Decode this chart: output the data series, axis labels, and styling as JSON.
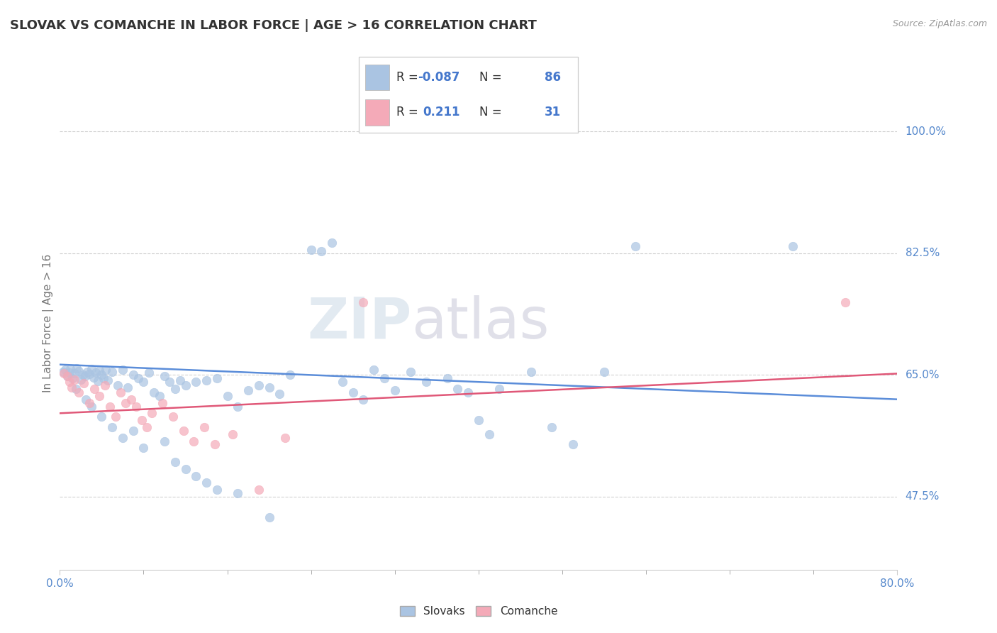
{
  "title": "SLOVAK VS COMANCHE IN LABOR FORCE | AGE > 16 CORRELATION CHART",
  "source": "Source: ZipAtlas.com",
  "xlim": [
    0.0,
    80.0
  ],
  "ylim": [
    37.0,
    108.0
  ],
  "ylabel": "In Labor Force | Age > 16",
  "legend_slovak_label": "Slovaks",
  "legend_comanche_label": "Comanche",
  "r_slovak": -0.087,
  "n_slovak": 86,
  "r_comanche": 0.211,
  "n_comanche": 31,
  "slovak_color": "#aac4e2",
  "comanche_color": "#f4aab8",
  "slovak_line_color": "#5b8dd9",
  "comanche_line_color": "#e05878",
  "background_color": "#ffffff",
  "watermark_text": "ZIPatlas",
  "ytick_vals": [
    47.5,
    65.0,
    82.5,
    100.0
  ],
  "ytick_labels": [
    "47.5%",
    "65.0%",
    "82.5%",
    "100.0%"
  ],
  "xtick_vals": [
    0.0,
    80.0
  ],
  "xtick_labels": [
    "0.0%",
    "80.0%"
  ],
  "sk_line_x0": 0.0,
  "sk_line_y0": 66.5,
  "sk_line_x1": 80.0,
  "sk_line_y1": 61.5,
  "co_line_x0": 0.0,
  "co_line_y0": 59.5,
  "co_line_x1": 80.0,
  "co_line_y1": 65.2,
  "slovak_scatter": [
    [
      0.3,
      65.5
    ],
    [
      0.5,
      65.8
    ],
    [
      0.7,
      64.8
    ],
    [
      0.9,
      65.3
    ],
    [
      1.0,
      65.9
    ],
    [
      1.2,
      64.5
    ],
    [
      1.4,
      65.2
    ],
    [
      1.6,
      66.0
    ],
    [
      1.8,
      65.6
    ],
    [
      2.0,
      64.3
    ],
    [
      2.2,
      65.0
    ],
    [
      2.4,
      64.8
    ],
    [
      2.6,
      65.4
    ],
    [
      2.8,
      65.1
    ],
    [
      3.0,
      65.9
    ],
    [
      3.2,
      64.6
    ],
    [
      3.4,
      65.3
    ],
    [
      3.6,
      64.1
    ],
    [
      3.8,
      65.7
    ],
    [
      4.0,
      65.0
    ],
    [
      4.2,
      64.5
    ],
    [
      4.4,
      65.8
    ],
    [
      4.6,
      64.2
    ],
    [
      5.0,
      65.5
    ],
    [
      5.5,
      63.5
    ],
    [
      6.0,
      65.8
    ],
    [
      6.5,
      63.2
    ],
    [
      7.0,
      65.0
    ],
    [
      7.5,
      64.5
    ],
    [
      8.0,
      64.0
    ],
    [
      8.5,
      65.3
    ],
    [
      9.0,
      62.5
    ],
    [
      9.5,
      62.0
    ],
    [
      10.0,
      64.8
    ],
    [
      10.5,
      64.0
    ],
    [
      11.0,
      63.0
    ],
    [
      11.5,
      64.2
    ],
    [
      12.0,
      63.5
    ],
    [
      13.0,
      64.0
    ],
    [
      14.0,
      64.2
    ],
    [
      15.0,
      64.5
    ],
    [
      16.0,
      62.0
    ],
    [
      17.0,
      60.5
    ],
    [
      18.0,
      62.8
    ],
    [
      19.0,
      63.5
    ],
    [
      20.0,
      63.2
    ],
    [
      21.0,
      62.3
    ],
    [
      22.0,
      65.0
    ],
    [
      24.0,
      83.0
    ],
    [
      25.0,
      82.8
    ],
    [
      26.0,
      84.0
    ],
    [
      27.0,
      64.0
    ],
    [
      28.0,
      62.5
    ],
    [
      29.0,
      61.5
    ],
    [
      30.0,
      65.8
    ],
    [
      31.0,
      64.5
    ],
    [
      32.0,
      62.8
    ],
    [
      33.5,
      65.5
    ],
    [
      35.0,
      64.0
    ],
    [
      37.0,
      64.5
    ],
    [
      38.0,
      63.0
    ],
    [
      39.0,
      62.5
    ],
    [
      40.0,
      58.5
    ],
    [
      41.0,
      56.5
    ],
    [
      42.0,
      63.0
    ],
    [
      45.0,
      65.5
    ],
    [
      47.0,
      57.5
    ],
    [
      49.0,
      55.0
    ],
    [
      52.0,
      65.5
    ],
    [
      55.0,
      83.5
    ],
    [
      70.0,
      83.5
    ],
    [
      1.5,
      63.0
    ],
    [
      2.5,
      61.5
    ],
    [
      3.0,
      60.5
    ],
    [
      4.0,
      59.0
    ],
    [
      5.0,
      57.5
    ],
    [
      6.0,
      56.0
    ],
    [
      7.0,
      57.0
    ],
    [
      8.0,
      54.5
    ],
    [
      10.0,
      55.5
    ],
    [
      11.0,
      52.5
    ],
    [
      12.0,
      51.5
    ],
    [
      13.0,
      50.5
    ],
    [
      14.0,
      49.5
    ],
    [
      15.0,
      48.5
    ],
    [
      17.0,
      48.0
    ],
    [
      20.0,
      44.5
    ]
  ],
  "comanche_scatter": [
    [
      0.4,
      65.2
    ],
    [
      0.7,
      64.8
    ],
    [
      0.9,
      64.0
    ],
    [
      1.1,
      63.2
    ],
    [
      1.4,
      64.3
    ],
    [
      1.8,
      62.5
    ],
    [
      2.3,
      63.8
    ],
    [
      2.8,
      61.0
    ],
    [
      3.3,
      63.0
    ],
    [
      3.8,
      62.0
    ],
    [
      4.3,
      63.5
    ],
    [
      4.8,
      60.5
    ],
    [
      5.3,
      59.0
    ],
    [
      5.8,
      62.5
    ],
    [
      6.3,
      61.0
    ],
    [
      6.8,
      61.5
    ],
    [
      7.3,
      60.5
    ],
    [
      7.8,
      58.5
    ],
    [
      8.3,
      57.5
    ],
    [
      8.8,
      59.5
    ],
    [
      9.8,
      61.0
    ],
    [
      10.8,
      59.0
    ],
    [
      11.8,
      57.0
    ],
    [
      12.8,
      55.5
    ],
    [
      13.8,
      57.5
    ],
    [
      14.8,
      55.0
    ],
    [
      16.5,
      56.5
    ],
    [
      19.0,
      48.5
    ],
    [
      21.5,
      56.0
    ],
    [
      29.0,
      75.5
    ],
    [
      75.0,
      75.5
    ]
  ]
}
